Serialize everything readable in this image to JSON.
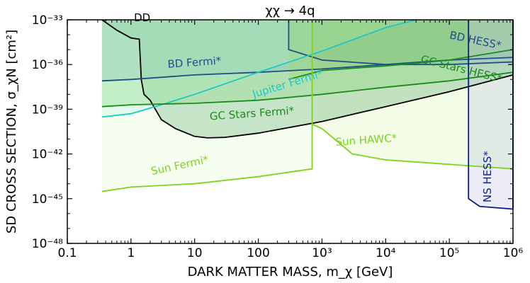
{
  "chart_data": {
    "type": "line",
    "title": "χχ → 4q",
    "xlabel": "DARK MATTER MASS, m_χ [GeV]",
    "ylabel": "SD CROSS SECTION, σ_χN [cm²]",
    "x_scale": "log",
    "y_scale": "log",
    "xlim": [
      0.1,
      1000000
    ],
    "ylim": [
      1e-48,
      1e-33
    ],
    "x_ticks": [
      "0.1",
      "1",
      "10",
      "100",
      "10³",
      "10⁴",
      "10⁵",
      "10⁶"
    ],
    "y_ticks": [
      "10⁻⁴⁸",
      "10⁻⁴⁵",
      "10⁻⁴²",
      "10⁻³⁹",
      "10⁻³⁶",
      "10⁻³³"
    ],
    "grid": false,
    "series": [
      {
        "name": "DD",
        "color": "#000000",
        "fill": "#2e8b57",
        "x": [
          0.35,
          0.6,
          1.0,
          1.35,
          1.45,
          1.6,
          2,
          3,
          5,
          10,
          16,
          30,
          100,
          1000,
          10000,
          100000,
          1000000
        ],
        "y": [
          1e-33,
          2e-34,
          6e-35,
          5e-35,
          1e-37,
          1e-38,
          4e-39,
          2e-40,
          5e-41,
          1.5e-41,
          1.2e-41,
          1.3e-41,
          2.5e-41,
          1.5e-40,
          1.5e-39,
          1.5e-38,
          2e-37
        ]
      },
      {
        "name": "BD Fermi*",
        "color": "#1f4e8c",
        "fill": "#3a7fbf",
        "x": [
          0.35,
          1,
          10,
          100,
          1000,
          10000,
          100000,
          1000000
        ],
        "y": [
          8e-38,
          1e-37,
          2e-37,
          3e-37,
          5e-37,
          1e-36,
          2e-36,
          3e-36
        ]
      },
      {
        "name": "BD HESS*",
        "color": "#1f4e8c",
        "fill": "#2a6f9f",
        "x": [
          300,
          300,
          1000,
          10000,
          100000,
          1000000,
          1000000
        ],
        "y": [
          1e-33,
          1e-35,
          2e-36,
          1e-36,
          1e-36,
          1.5e-36,
          1e-33
        ]
      },
      {
        "name": "Jupiter Fermi*",
        "color": "#1ec8c8",
        "fill": "#a0f0e8",
        "x": [
          0.35,
          1,
          3,
          10,
          100,
          1000,
          10000,
          30000
        ],
        "y": [
          3e-40,
          5e-40,
          2e-39,
          1e-38,
          3e-37,
          8e-36,
          3e-34,
          1e-33
        ]
      },
      {
        "name": "GC Stars Fermi*",
        "color": "#1a8c1a",
        "fill": "#5fc85f",
        "x": [
          0.35,
          1,
          10,
          100,
          1000,
          10000,
          100000,
          1000000
        ],
        "y": [
          1.5e-39,
          2e-39,
          2.5e-39,
          4e-39,
          1e-38,
          3e-38,
          8e-38,
          3e-37
        ]
      },
      {
        "name": "GC Stars HESS*",
        "color": "#1a8c1a",
        "fill": "#7acc3a",
        "x": [
          300,
          1000,
          10000,
          100000,
          1000000
        ],
        "y": [
          1e-37,
          4e-37,
          8e-37,
          2e-36,
          1e-35
        ]
      },
      {
        "name": "Sun Fermi*",
        "color": "#7ed321",
        "fill": "#e6fcd0",
        "x": [
          0.35,
          1,
          10,
          100,
          700,
          700
        ],
        "y": [
          3e-45,
          6e-45,
          1e-44,
          3e-44,
          1e-43,
          1e-33
        ]
      },
      {
        "name": "Sun HAWC*",
        "color": "#7ed321",
        "fill": "#d9f7b8",
        "x": [
          700,
          1000,
          3000,
          10000,
          100000,
          1000000
        ],
        "y": [
          1e-40,
          5e-41,
          1e-42,
          4e-43,
          2e-43,
          1e-43
        ]
      },
      {
        "name": "NS HESS*",
        "color": "#0b1f8a",
        "fill": "#c7c9e6",
        "x": [
          200000,
          200000,
          300000,
          1000000,
          1000000
        ],
        "y": [
          1e-33,
          1e-45,
          3e-46,
          2e-46,
          1e-33
        ]
      }
    ]
  }
}
